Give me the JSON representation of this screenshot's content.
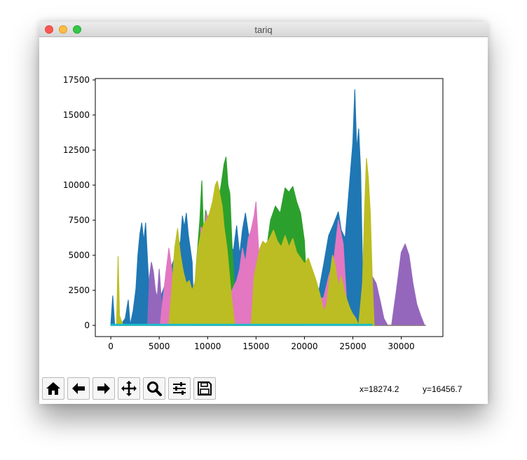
{
  "window": {
    "title": "tariq"
  },
  "toolbar": {
    "buttons": [
      {
        "name": "home-icon"
      },
      {
        "name": "back-arrow-icon"
      },
      {
        "name": "forward-arrow-icon"
      },
      {
        "name": "pan-icon"
      },
      {
        "name": "zoom-icon"
      },
      {
        "name": "configure-subplots-icon"
      },
      {
        "name": "save-icon"
      }
    ],
    "coord_x": "x=18274.2",
    "coord_y": "y=16456.7"
  },
  "chart_data": {
    "type": "line",
    "title": "",
    "xlabel": "",
    "ylabel": "",
    "xlim": [
      -1600,
      34300
    ],
    "ylim": [
      -800,
      17600
    ],
    "xticks": [
      0,
      5000,
      10000,
      15000,
      20000,
      25000,
      30000
    ],
    "yticks": [
      0,
      2500,
      5000,
      7500,
      10000,
      12500,
      15000,
      17500
    ],
    "grid": false,
    "series": [
      {
        "color": "#1f77b4",
        "x": [
          0,
          200,
          400,
          1000,
          1500,
          1800,
          2000,
          2300,
          2600,
          2800,
          3000,
          3200,
          3400,
          3600,
          3800,
          4000,
          4100,
          7200,
          7400,
          7600,
          7800,
          8000,
          8200,
          8400,
          8600,
          12700,
          13000,
          13300,
          13600,
          13900,
          14200,
          14500,
          14800,
          15000,
          21500,
          22000,
          22500,
          23000,
          23500,
          23800,
          24200,
          24600,
          25000,
          25200,
          25400,
          25600,
          25800,
          26000,
          26200
        ],
        "y": [
          0,
          2100,
          0,
          0,
          500,
          1800,
          0,
          1000,
          2600,
          5000,
          6500,
          7300,
          6000,
          7300,
          4500,
          2000,
          0,
          6000,
          7800,
          7000,
          8000,
          6500,
          5500,
          4500,
          0,
          5500,
          7100,
          5000,
          6800,
          8000,
          6600,
          5400,
          4300,
          0,
          2500,
          4400,
          6400,
          7200,
          8100,
          6800,
          6200,
          9600,
          13000,
          16800,
          12500,
          14000,
          11000,
          4000,
          0
        ]
      },
      {
        "color": "#ff7f0e",
        "x": [
          0,
          32500
        ],
        "y": [
          0,
          0
        ]
      },
      {
        "color": "#2ca02c",
        "x": [
          8400,
          8800,
          9200,
          9400,
          9600,
          9800,
          10200,
          10600,
          11000,
          11400,
          11700,
          11900,
          12100,
          12300,
          12500,
          12700,
          12900,
          13100,
          16000,
          16500,
          17000,
          17500,
          18000,
          18400,
          18800,
          19200,
          19600,
          20000,
          20200,
          20400
        ],
        "y": [
          0,
          4000,
          7500,
          10300,
          6200,
          8200,
          7200,
          7000,
          8500,
          10000,
          11500,
          12000,
          10000,
          9400,
          6000,
          3500,
          1500,
          0,
          5000,
          7500,
          8500,
          8000,
          9800,
          9500,
          9900,
          8800,
          8000,
          6000,
          3000,
          0
        ]
      },
      {
        "color": "#d62728",
        "x": [
          27000,
          32500
        ],
        "y": [
          0,
          0
        ]
      },
      {
        "color": "#9467bd",
        "x": [
          3800,
          4000,
          4200,
          4400,
          4600,
          4800,
          5000,
          5200,
          5400,
          16800,
          17200,
          17600,
          18000,
          18400,
          26800,
          27000,
          27400,
          27800,
          28200,
          28600,
          29000,
          29500,
          30000,
          30400,
          30800,
          31200,
          31600,
          32000,
          32400
        ],
        "y": [
          0,
          3500,
          4500,
          3800,
          2500,
          2000,
          4000,
          2000,
          0,
          0,
          4600,
          3000,
          4300,
          0,
          0,
          3500,
          3000,
          1800,
          500,
          0,
          0,
          2500,
          5200,
          5800,
          5000,
          3000,
          1500,
          700,
          0
        ]
      },
      {
        "color": "#e377c2",
        "x": [
          5100,
          5400,
          5700,
          6000,
          6300,
          6600,
          9000,
          9300,
          9600,
          9900,
          10200,
          10500,
          10800,
          13000,
          13300,
          13600,
          13900,
          14200,
          14500,
          14800,
          15000,
          15300,
          15600,
          22000,
          22500,
          23000,
          23500,
          24000,
          24500
        ],
        "y": [
          0,
          2000,
          3800,
          5500,
          4000,
          0,
          2500,
          7000,
          6800,
          8000,
          5000,
          3500,
          0,
          3200,
          4000,
          5500,
          4500,
          6200,
          6800,
          7800,
          8800,
          5000,
          0,
          2000,
          3500,
          4500,
          7500,
          5800,
          0
        ]
      },
      {
        "color": "#7f7f7f",
        "x": [
          0,
          32500
        ],
        "y": [
          0,
          0
        ]
      },
      {
        "color": "#bcbd22",
        "x": [
          600,
          750,
          900,
          1100,
          1300,
          6000,
          6300,
          6600,
          6900,
          7200,
          7500,
          7800,
          8100,
          8400,
          8700,
          9000,
          9300,
          9600,
          9900,
          10200,
          10500,
          10800,
          11000,
          11200,
          11500,
          11700,
          12000,
          12400,
          12800,
          14500,
          14800,
          15100,
          15400,
          15700,
          16000,
          16400,
          16800,
          17200,
          17600,
          18000,
          18400,
          18800,
          19200,
          19600,
          20000,
          20400,
          20800,
          21200,
          21600,
          22000,
          22300,
          22600,
          22900,
          23200,
          23500,
          23800,
          24100,
          24400,
          24700,
          25000,
          25300,
          25600,
          26000,
          26200,
          26400,
          26600,
          26800,
          27000,
          27200
        ],
        "y": [
          0,
          4900,
          700,
          300,
          0,
          0,
          2500,
          5500,
          6900,
          5000,
          3800,
          3000,
          3200,
          2500,
          3100,
          5500,
          6500,
          7200,
          7500,
          8000,
          8800,
          10000,
          10300,
          9600,
          8500,
          7000,
          5500,
          2500,
          0,
          0,
          3500,
          4500,
          5500,
          6000,
          5800,
          6200,
          6800,
          6000,
          5600,
          6400,
          5600,
          6200,
          5200,
          4800,
          4400,
          4800,
          4000,
          3200,
          2200,
          1000,
          1500,
          3400,
          5000,
          4200,
          2800,
          3500,
          2500,
          1800,
          1200,
          800,
          500,
          0,
          3000,
          8000,
          11900,
          10500,
          8000,
          3500,
          0
        ]
      },
      {
        "color": "#17becf",
        "x": [
          0,
          27000
        ],
        "y": [
          80,
          80
        ]
      }
    ]
  }
}
